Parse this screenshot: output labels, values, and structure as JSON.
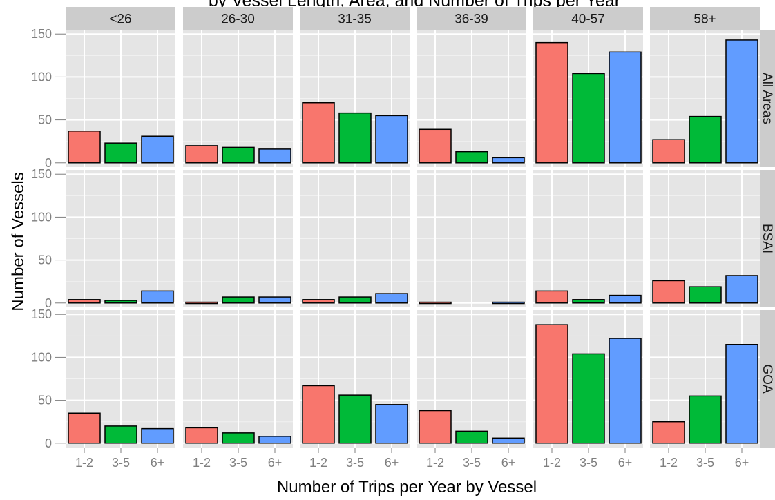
{
  "chart_data": {
    "type": "bar",
    "title": "by Vessel Length, Area, and Number of Trips per Year",
    "xlabel": "Number of Trips per Year by Vessel",
    "ylabel": "Number of Vessels",
    "categories": [
      "1-2",
      "3-5",
      "6+"
    ],
    "column_facets": [
      "<26",
      "26-30",
      "31-35",
      "36-39",
      "40-57",
      "58+"
    ],
    "row_facets": [
      "All Areas",
      "BSAI",
      "GOA"
    ],
    "ylim": [
      -5,
      155
    ],
    "y_ticks": [
      0,
      50,
      100,
      150
    ],
    "grid": true,
    "colors": [
      "#F8766D",
      "#00BA38",
      "#619CFF"
    ],
    "panels": {
      "All Areas": {
        "<26": [
          37,
          23,
          31
        ],
        "26-30": [
          20,
          18,
          16
        ],
        "31-35": [
          70,
          58,
          55
        ],
        "36-39": [
          39,
          13,
          6
        ],
        "40-57": [
          140,
          104,
          129
        ],
        "58+": [
          27,
          54,
          143
        ]
      },
      "BSAI": {
        "<26": [
          4,
          3,
          14
        ],
        "26-30": [
          1,
          7,
          7
        ],
        "31-35": [
          4,
          7,
          11
        ],
        "36-39": [
          1,
          0,
          1
        ],
        "40-57": [
          14,
          4,
          9
        ],
        "58+": [
          26,
          19,
          32
        ]
      },
      "GOA": {
        "<26": [
          35,
          20,
          17
        ],
        "26-30": [
          18,
          12,
          8
        ],
        "31-35": [
          67,
          56,
          45
        ],
        "36-39": [
          38,
          14,
          6
        ],
        "40-57": [
          138,
          104,
          122
        ],
        "58+": [
          25,
          55,
          115
        ]
      }
    }
  }
}
